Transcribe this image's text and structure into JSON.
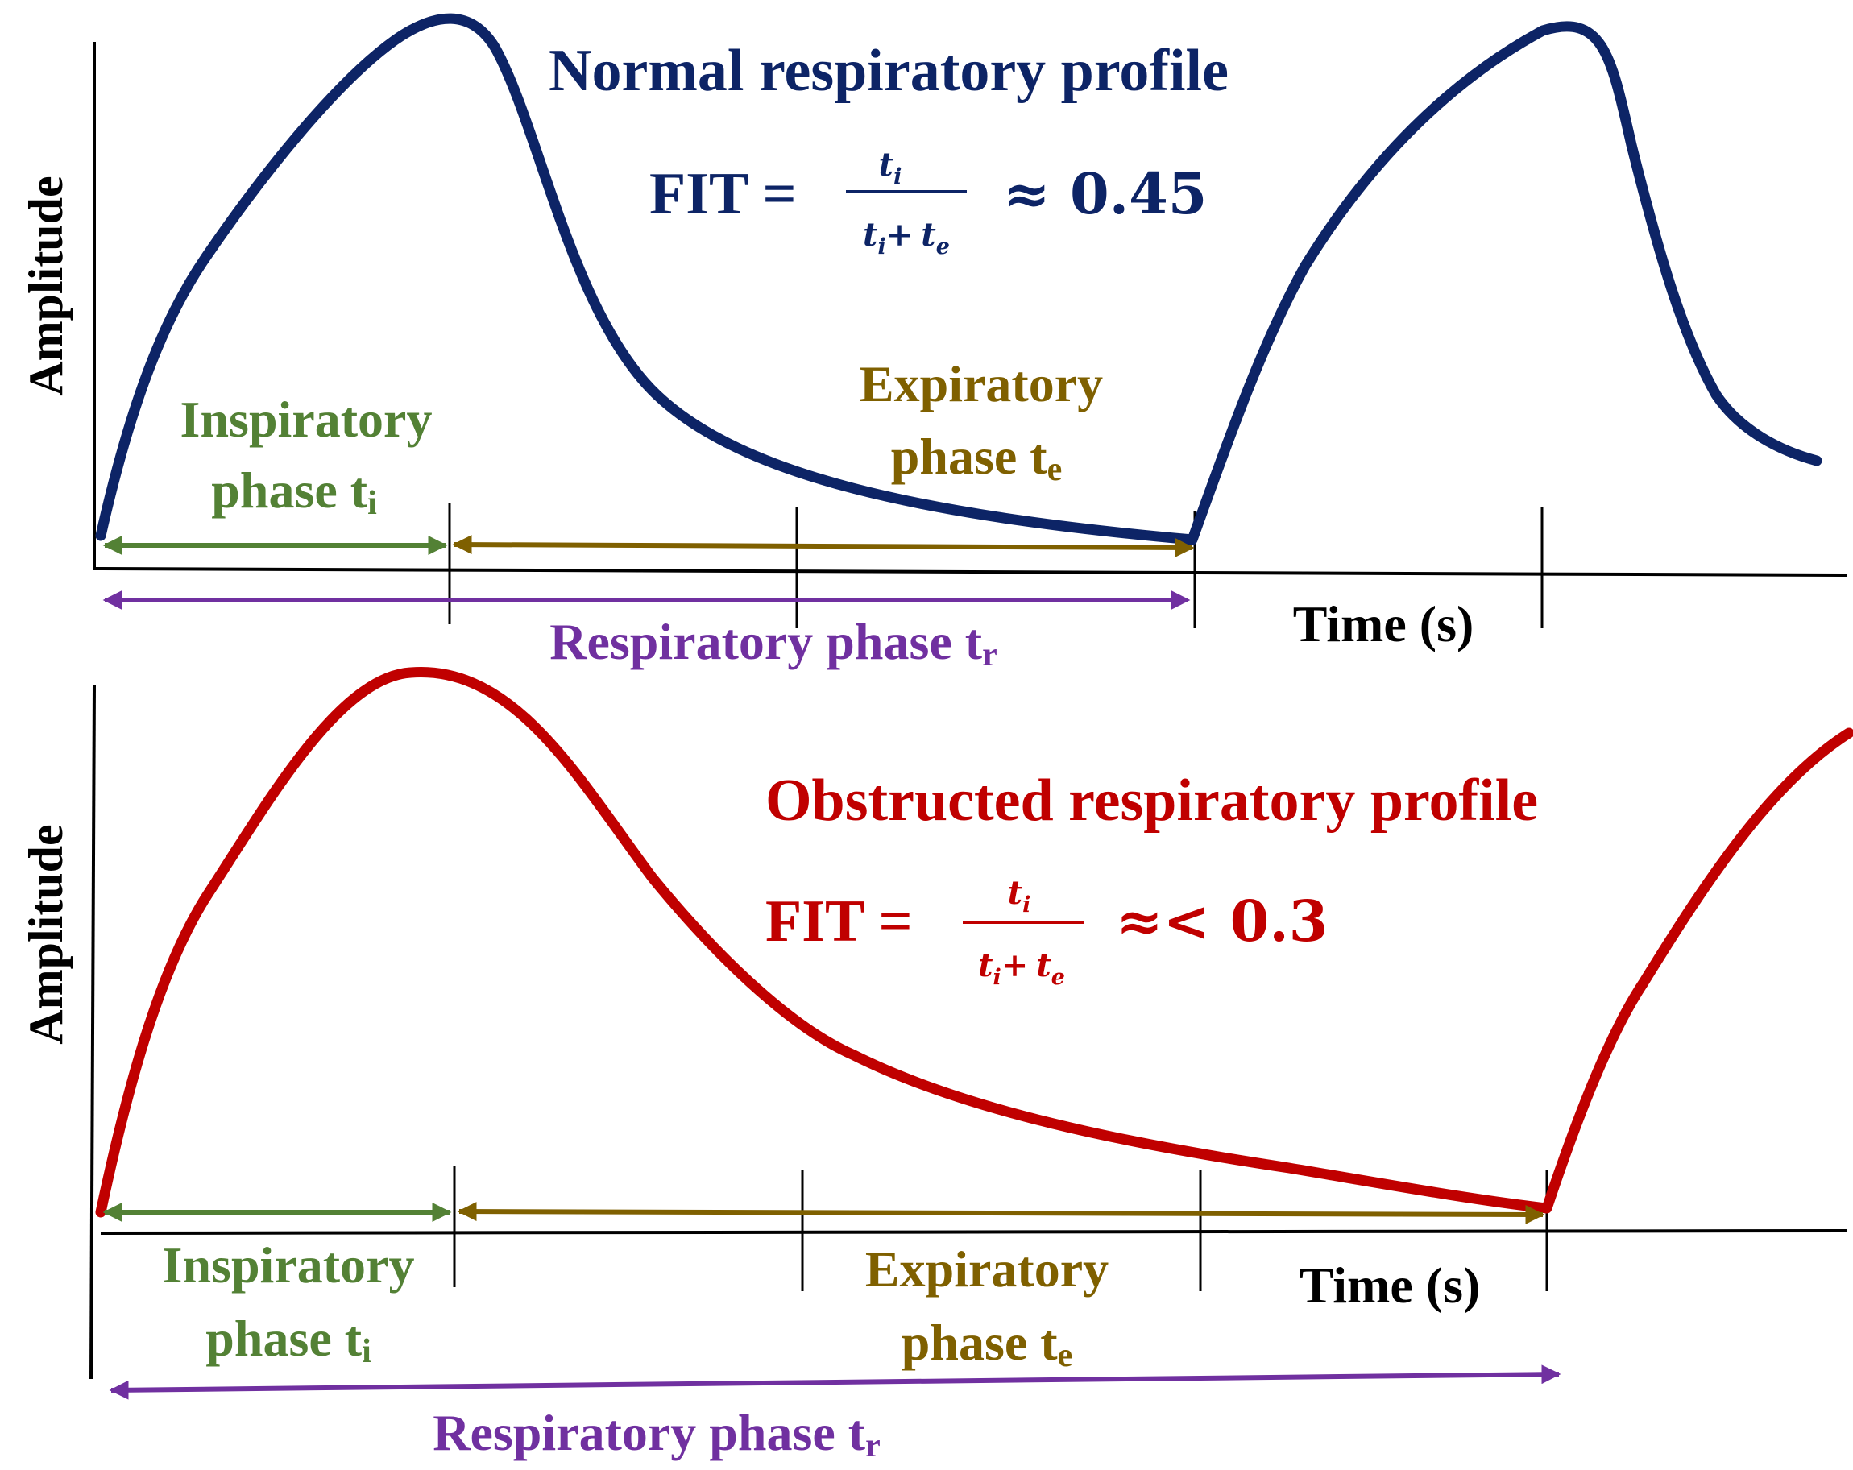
{
  "colors": {
    "normal": "#0d2466",
    "obstructed": "#c00000",
    "inspiratory": "#538135",
    "expiratory": "#7f6000",
    "respiratory": "#7030a0",
    "axis": "#000000"
  },
  "top_panel": {
    "y_label": "Amplitude",
    "x_label": "Time (s)",
    "title": "Normal respiratory profile",
    "formula": {
      "lhs": "FIT =",
      "num": "t",
      "num_sub": "i",
      "den_a": "t",
      "den_a_sub": "i",
      "den_plus": "+",
      "den_b": "t",
      "den_b_sub": "e",
      "rhs": "≈ 0.45"
    },
    "inspiratory": {
      "line1": "Inspiratory",
      "line2": "phase t",
      "sub": "i"
    },
    "expiratory": {
      "line1": "Expiratory",
      "line2": "phase t",
      "sub": "e"
    },
    "respiratory": {
      "text": "Respiratory phase t",
      "sub": "r"
    }
  },
  "bottom_panel": {
    "y_label": "Amplitude",
    "x_label": "Time (s)",
    "title": "Obstructed respiratory profile",
    "formula": {
      "lhs": "FIT =",
      "num": "t",
      "num_sub": "i",
      "den_a": "t",
      "den_a_sub": "i",
      "den_plus": "+",
      "den_b": "t",
      "den_b_sub": "e",
      "rhs": "≈< 0.3"
    },
    "inspiratory": {
      "line1": "Inspiratory",
      "line2": "phase t",
      "sub": "i"
    },
    "expiratory": {
      "line1": "Expiratory",
      "line2": "phase t",
      "sub": "e"
    },
    "respiratory": {
      "text": "Respiratory phase t",
      "sub": "r"
    }
  }
}
